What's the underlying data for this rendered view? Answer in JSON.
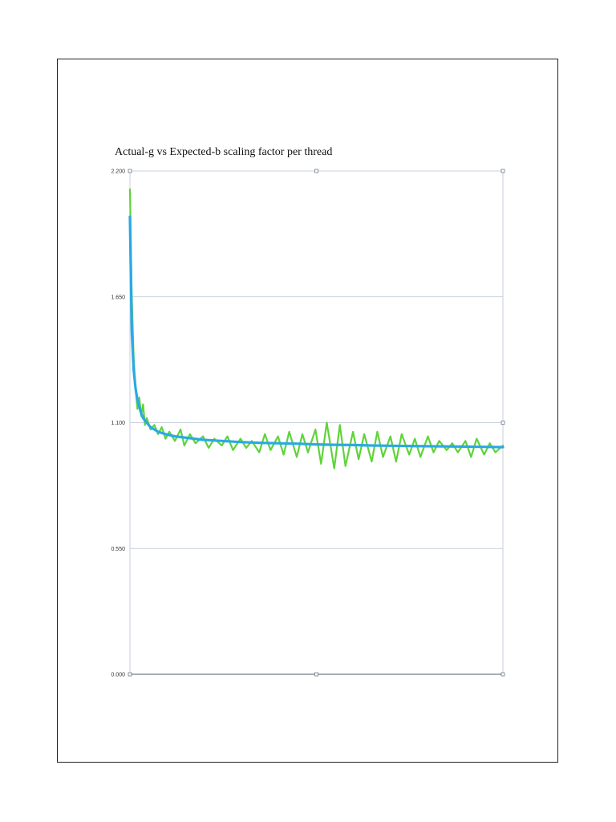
{
  "chart_data": {
    "type": "line",
    "title": "Actual-g vs Expected-b scaling factor per thread",
    "xlabel": "",
    "ylabel": "",
    "ylim": [
      0,
      2.2
    ],
    "xlim": [
      1,
      200
    ],
    "y_ticks": [
      "0.000",
      "0.550",
      "1.100",
      "1.650",
      "2.200"
    ],
    "y_tick_values": [
      0,
      0.55,
      1.1,
      1.65,
      2.2
    ],
    "grid": true,
    "legend": "none",
    "series": [
      {
        "color": "#5fd33a",
        "x": [
          1,
          2,
          3,
          4,
          5,
          6,
          7,
          8,
          9,
          10,
          12,
          14,
          16,
          18,
          20,
          22,
          25,
          28,
          30,
          33,
          36,
          40,
          43,
          46,
          50,
          53,
          56,
          60,
          63,
          66,
          70,
          73,
          76,
          80,
          83,
          86,
          90,
          93,
          96,
          100,
          103,
          106,
          110,
          113,
          116,
          120,
          123,
          126,
          130,
          133,
          136,
          140,
          143,
          146,
          150,
          153,
          156,
          160,
          163,
          166,
          170,
          173,
          176,
          180,
          183,
          186,
          190,
          193,
          196,
          200
        ],
        "y": [
          2.12,
          1.65,
          1.38,
          1.25,
          1.16,
          1.21,
          1.13,
          1.18,
          1.09,
          1.12,
          1.07,
          1.09,
          1.05,
          1.08,
          1.03,
          1.06,
          1.02,
          1.07,
          1.0,
          1.05,
          1.01,
          1.04,
          0.99,
          1.03,
          1.0,
          1.04,
          0.98,
          1.03,
          0.99,
          1.02,
          0.97,
          1.05,
          0.98,
          1.04,
          0.96,
          1.06,
          0.95,
          1.05,
          0.97,
          1.07,
          0.92,
          1.1,
          0.9,
          1.09,
          0.91,
          1.06,
          0.94,
          1.05,
          0.93,
          1.06,
          0.95,
          1.04,
          0.93,
          1.05,
          0.96,
          1.03,
          0.95,
          1.04,
          0.97,
          1.02,
          0.98,
          1.01,
          0.97,
          1.02,
          0.95,
          1.03,
          0.96,
          1.01,
          0.97,
          1.0
        ]
      },
      {
        "color": "#2aa9e6",
        "x": [
          1,
          2,
          3,
          4,
          5,
          6,
          7,
          8,
          9,
          10,
          12,
          14,
          16,
          18,
          20,
          25,
          30,
          40,
          50,
          60,
          70,
          80,
          90,
          100,
          110,
          120,
          130,
          140,
          150,
          160,
          170,
          180,
          190,
          200
        ],
        "y": [
          2.0,
          1.5,
          1.33,
          1.25,
          1.2,
          1.17,
          1.14,
          1.12,
          1.11,
          1.1,
          1.08,
          1.07,
          1.06,
          1.055,
          1.05,
          1.04,
          1.035,
          1.025,
          1.02,
          1.015,
          1.012,
          1.01,
          1.008,
          1.005,
          1.003,
          1.002,
          1.0,
          0.999,
          0.998,
          0.997,
          0.996,
          0.995,
          0.994,
          0.993
        ]
      }
    ]
  }
}
